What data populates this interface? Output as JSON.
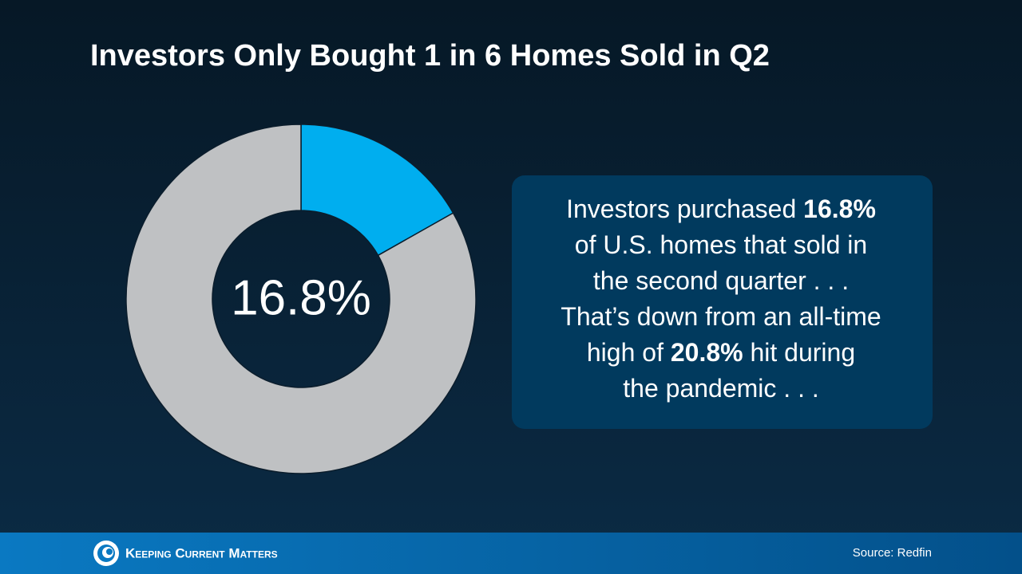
{
  "chart_data": {
    "type": "donut",
    "title": "Investors Only Bought 1 in 6 Homes Sold in Q2",
    "values": [
      16.8,
      83.2
    ],
    "value_labels": [
      "16.8%",
      null
    ],
    "colors": [
      "#00aeef",
      "#bfc1c3"
    ]
  },
  "callout": {
    "lines": [
      [
        {
          "text": "Investors purchased "
        },
        {
          "text": "16.8%",
          "bold": true
        }
      ],
      [
        {
          "text": "of U.S. homes that sold in"
        }
      ],
      [
        {
          "text": "the second quarter . . ."
        }
      ],
      [
        {
          "text": "That’s down from an all-time"
        }
      ],
      [
        {
          "text": "high of "
        },
        {
          "text": "20.8%",
          "bold": true
        },
        {
          "text": " hit during"
        }
      ],
      [
        {
          "text": "the pandemic . . ."
        }
      ]
    ]
  },
  "footer": {
    "brand": "Keeping Current Matters",
    "source": "Source: Redfin"
  }
}
